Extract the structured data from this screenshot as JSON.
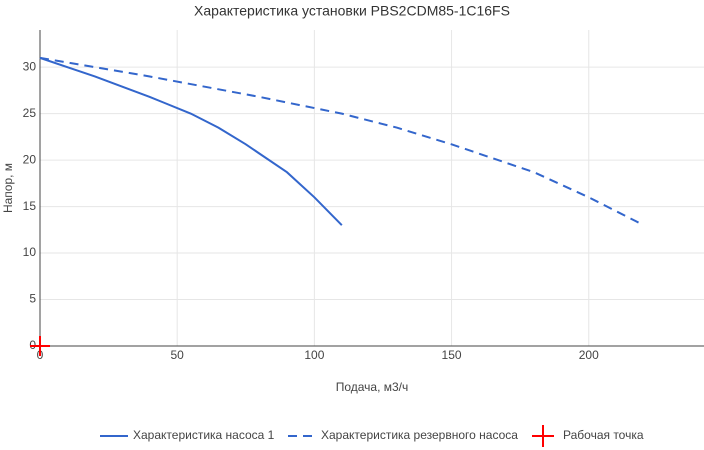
{
  "chart_data": {
    "type": "line",
    "title": "Характеристика установки PBS2CDM85-1C16FS",
    "x_label": "Подача, м3/ч",
    "y_label": "Напор, м",
    "series": [
      {
        "name": "Характеристика насоса 1",
        "color": "#3366cc",
        "mode": "lines",
        "dash": "solid",
        "x": [
          0,
          10,
          20,
          30,
          40,
          45,
          55,
          65,
          75,
          80,
          90,
          100,
          110
        ],
        "values": [
          31,
          30,
          29,
          27.9,
          26.8,
          26.2,
          25,
          23.5,
          21.7,
          20.7,
          18.7,
          16,
          13
        ]
      },
      {
        "name": "Характеристика резервного насоса",
        "color": "#3366cc",
        "mode": "lines",
        "dash": "dash",
        "x": [
          0,
          20,
          40,
          60,
          80,
          90,
          110,
          130,
          150,
          160,
          180,
          200,
          220
        ],
        "values": [
          31,
          30,
          29,
          27.9,
          26.8,
          26.2,
          25,
          23.5,
          21.7,
          20.7,
          18.7,
          16,
          13
        ]
      },
      {
        "name": "Рабочая точка",
        "color": "#ff0000",
        "mode": "markers",
        "marker": "cross",
        "x": [
          0
        ],
        "values": [
          0
        ]
      }
    ],
    "xlim": [
      0,
      242
    ],
    "xticks": [
      0,
      50,
      100,
      150,
      200
    ],
    "ylim": [
      0,
      34
    ],
    "yticks": [
      0,
      5,
      10,
      15,
      20,
      25,
      30
    ],
    "grid": true
  }
}
